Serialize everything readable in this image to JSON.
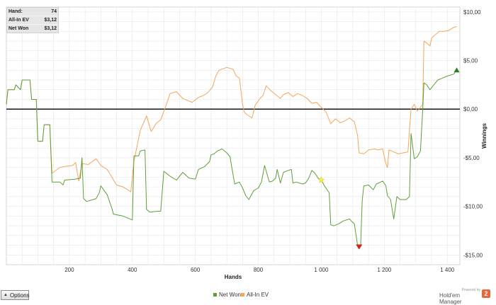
{
  "infobox": {
    "rows": [
      {
        "label": "Hand:",
        "value": "74"
      },
      {
        "label": "All-In EV",
        "value": "$3,12"
      },
      {
        "label": "Net Won",
        "value": "$3,12"
      }
    ]
  },
  "options_label": "Options",
  "brand": {
    "powered_by": "Powered by",
    "name": "Hold'em Manager",
    "logo_glyph": "2"
  },
  "colors": {
    "net_won": "#5f9e3a",
    "all_in_ev": "#f5a55a",
    "zero_line": "#000000",
    "grid": "#e6e6e6"
  },
  "chart_data": {
    "type": "line",
    "title": "",
    "xlabel": "Hands",
    "ylabel": "Winnings",
    "xlim": [
      0,
      1440
    ],
    "ylim": [
      -16,
      10.5
    ],
    "xticks": [
      200,
      400,
      600,
      800,
      1000,
      1200,
      1400
    ],
    "xtick_labels": [
      "200",
      "400",
      "600",
      "800",
      "1 000",
      "1 200",
      "1 400"
    ],
    "yticks": [
      10,
      5,
      0,
      -5,
      -10,
      -15
    ],
    "ytick_labels": [
      "$10,00",
      "$5,00",
      "$0,00",
      "-$5,00",
      "-$10,00",
      "-$15,00"
    ],
    "grid": true,
    "legend": "bottom-center",
    "series": [
      {
        "name": "Net Won",
        "color": "#5f9e3a",
        "points": [
          [
            0,
            0.5
          ],
          [
            5,
            2
          ],
          [
            25,
            2
          ],
          [
            30,
            2.5
          ],
          [
            45,
            2
          ],
          [
            50,
            3
          ],
          [
            75,
            3
          ],
          [
            80,
            1
          ],
          [
            95,
            1
          ],
          [
            100,
            -3.3
          ],
          [
            115,
            -3.3
          ],
          [
            120,
            -1.6
          ],
          [
            138,
            -1.6
          ],
          [
            145,
            -7.5
          ],
          [
            170,
            -7.5
          ],
          [
            180,
            -7.8
          ],
          [
            185,
            -7.3
          ],
          [
            220,
            -7.2
          ],
          [
            235,
            -7.1
          ],
          [
            240,
            -5
          ],
          [
            245,
            -9.2
          ],
          [
            255,
            -9.5
          ],
          [
            285,
            -9.2
          ],
          [
            295,
            -8.6
          ],
          [
            300,
            -7.9
          ],
          [
            320,
            -8.8
          ],
          [
            335,
            -10.2
          ],
          [
            340,
            -10.8
          ],
          [
            370,
            -11
          ],
          [
            385,
            -11.2
          ],
          [
            400,
            -11.4
          ],
          [
            405,
            -4.8
          ],
          [
            420,
            -4.8
          ],
          [
            425,
            -4.3
          ],
          [
            440,
            -4.2
          ],
          [
            445,
            -10.3
          ],
          [
            455,
            -10.6
          ],
          [
            480,
            -10.5
          ],
          [
            490,
            -10.5
          ],
          [
            500,
            -6.4
          ],
          [
            520,
            -6.9
          ],
          [
            540,
            -7.3
          ],
          [
            560,
            -6.5
          ],
          [
            580,
            -7.1
          ],
          [
            600,
            -7.2
          ],
          [
            610,
            -6.2
          ],
          [
            630,
            -5.9
          ],
          [
            645,
            -5.4
          ],
          [
            650,
            -4.7
          ],
          [
            660,
            -4.6
          ],
          [
            670,
            -4.3
          ],
          [
            685,
            -4.1
          ],
          [
            700,
            -4.5
          ],
          [
            710,
            -4.9
          ],
          [
            725,
            -7.7
          ],
          [
            740,
            -7.5
          ],
          [
            750,
            -8.1
          ],
          [
            760,
            -8.9
          ],
          [
            770,
            -9.3
          ],
          [
            785,
            -8.4
          ],
          [
            800,
            -8.1
          ],
          [
            810,
            -7.5
          ],
          [
            820,
            -5.8
          ],
          [
            835,
            -7.5
          ],
          [
            845,
            -7.4
          ],
          [
            855,
            -7.1
          ],
          [
            860,
            -6.2
          ],
          [
            870,
            -7.6
          ],
          [
            880,
            -6.5
          ],
          [
            895,
            -6.3
          ],
          [
            905,
            -6.2
          ],
          [
            910,
            -7.6
          ],
          [
            920,
            -7.5
          ],
          [
            940,
            -7.7
          ],
          [
            950,
            -7.6
          ],
          [
            960,
            -7.1
          ],
          [
            970,
            -6.3
          ],
          [
            980,
            -6.6
          ],
          [
            990,
            -7.1
          ],
          [
            1000,
            -7.3
          ],
          [
            1010,
            -7.9
          ],
          [
            1025,
            -8.6
          ],
          [
            1030,
            -11.9
          ],
          [
            1040,
            -12
          ],
          [
            1055,
            -11.8
          ],
          [
            1070,
            -11.5
          ],
          [
            1090,
            -11.3
          ],
          [
            1095,
            -11.5
          ],
          [
            1105,
            -11.8
          ],
          [
            1115,
            -14
          ],
          [
            1125,
            -14
          ],
          [
            1130,
            -9.4
          ],
          [
            1135,
            -7.9
          ],
          [
            1150,
            -7.8
          ],
          [
            1165,
            -8.3
          ],
          [
            1175,
            -7.7
          ],
          [
            1195,
            -7.4
          ],
          [
            1205,
            -7.9
          ],
          [
            1210,
            -8.9
          ],
          [
            1220,
            -9.3
          ],
          [
            1230,
            -11.3
          ],
          [
            1240,
            -9
          ],
          [
            1250,
            -9.3
          ],
          [
            1270,
            -9.3
          ],
          [
            1280,
            -9
          ],
          [
            1285,
            -2.5
          ],
          [
            1295,
            -5.1
          ],
          [
            1305,
            -4.9
          ],
          [
            1315,
            -4.3
          ],
          [
            1322,
            0
          ],
          [
            1326,
            2.7
          ],
          [
            1335,
            2.5
          ],
          [
            1345,
            2
          ],
          [
            1355,
            2.4
          ],
          [
            1370,
            3
          ],
          [
            1385,
            3.2
          ],
          [
            1400,
            3.4
          ],
          [
            1420,
            3.6
          ],
          [
            1430,
            4
          ]
        ]
      },
      {
        "name": "All-In EV",
        "color": "#f5a55a",
        "points": [
          [
            0,
            0.5
          ],
          [
            5,
            2
          ],
          [
            25,
            2
          ],
          [
            30,
            2.5
          ],
          [
            45,
            2
          ],
          [
            50,
            3
          ],
          [
            75,
            3
          ],
          [
            80,
            1
          ],
          [
            95,
            1
          ],
          [
            100,
            -3.3
          ],
          [
            115,
            -3.3
          ],
          [
            120,
            -1.6
          ],
          [
            138,
            -1.6
          ],
          [
            145,
            -6.6
          ],
          [
            170,
            -6
          ],
          [
            185,
            -5.9
          ],
          [
            210,
            -5.8
          ],
          [
            220,
            -5.5
          ],
          [
            230,
            -7.4
          ],
          [
            240,
            -5.6
          ],
          [
            260,
            -5.7
          ],
          [
            285,
            -5.1
          ],
          [
            300,
            -5.8
          ],
          [
            320,
            -6.2
          ],
          [
            335,
            -7
          ],
          [
            350,
            -7.8
          ],
          [
            370,
            -8
          ],
          [
            385,
            -8.3
          ],
          [
            395,
            -8.5
          ],
          [
            405,
            -5.4
          ],
          [
            425,
            -2.2
          ],
          [
            445,
            -0.7
          ],
          [
            460,
            -2.3
          ],
          [
            475,
            -1.5
          ],
          [
            490,
            -1.1
          ],
          [
            505,
            0.2
          ],
          [
            520,
            1.6
          ],
          [
            540,
            1.8
          ],
          [
            560,
            1.1
          ],
          [
            575,
            0.9
          ],
          [
            590,
            0.7
          ],
          [
            610,
            1.2
          ],
          [
            625,
            1.4
          ],
          [
            640,
            1.7
          ],
          [
            655,
            2.3
          ],
          [
            665,
            3.4
          ],
          [
            675,
            4
          ],
          [
            700,
            4.3
          ],
          [
            720,
            4.1
          ],
          [
            730,
            3.4
          ],
          [
            740,
            3.2
          ],
          [
            750,
            0.5
          ],
          [
            755,
            -0.3
          ],
          [
            765,
            -0.6
          ],
          [
            780,
            -0.9
          ],
          [
            790,
            0.4
          ],
          [
            805,
            1.1
          ],
          [
            815,
            1.4
          ],
          [
            825,
            2.4
          ],
          [
            840,
            1.9
          ],
          [
            855,
            1.5
          ],
          [
            870,
            1.1
          ],
          [
            880,
            1.5
          ],
          [
            895,
            1.7
          ],
          [
            910,
            1.3
          ],
          [
            925,
            1.6
          ],
          [
            940,
            1.4
          ],
          [
            955,
            1.1
          ],
          [
            970,
            0.6
          ],
          [
            985,
            0.7
          ],
          [
            1000,
            0.2
          ],
          [
            1015,
            -0.3
          ],
          [
            1030,
            -1.5
          ],
          [
            1045,
            -1
          ],
          [
            1060,
            -1.4
          ],
          [
            1075,
            -1.2
          ],
          [
            1090,
            -0.9
          ],
          [
            1105,
            -1.3
          ],
          [
            1115,
            -2.7
          ],
          [
            1120,
            -4.5
          ],
          [
            1135,
            -4.6
          ],
          [
            1150,
            -4.2
          ],
          [
            1170,
            -4.1
          ],
          [
            1180,
            -4.2
          ],
          [
            1195,
            -4.1
          ],
          [
            1205,
            -5.6
          ],
          [
            1210,
            -6
          ],
          [
            1215,
            -4.2
          ],
          [
            1230,
            -4.4
          ],
          [
            1245,
            -4.6
          ],
          [
            1260,
            -4.5
          ],
          [
            1275,
            -4.4
          ],
          [
            1285,
            0
          ],
          [
            1295,
            0.5
          ],
          [
            1305,
            -0.2
          ],
          [
            1315,
            0.2
          ],
          [
            1322,
            0.5
          ],
          [
            1326,
            7
          ],
          [
            1335,
            6.8
          ],
          [
            1345,
            6.5
          ],
          [
            1350,
            7.3
          ],
          [
            1360,
            7.6
          ],
          [
            1375,
            8
          ],
          [
            1390,
            8
          ],
          [
            1405,
            8.1
          ],
          [
            1420,
            8.4
          ],
          [
            1430,
            8.5
          ]
        ]
      }
    ],
    "markers": [
      {
        "shape": "star",
        "x": 1000,
        "y": -7.3,
        "color": "#f6f03a"
      },
      {
        "shape": "triangle-down",
        "x": 1120,
        "y": -14,
        "color": "#d41f1f"
      },
      {
        "shape": "triangle-up",
        "x": 1430,
        "y": 4,
        "color": "#2f7b2a"
      }
    ]
  }
}
